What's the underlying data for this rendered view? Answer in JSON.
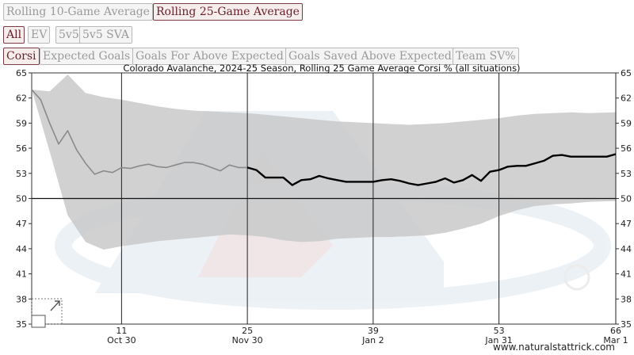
{
  "toggles": {
    "rolling_10": "Rolling 10-Game Average",
    "rolling_25": "Rolling 25-Game Average"
  },
  "situations": [
    "All",
    "EV",
    "5v5",
    "5v5 SVA"
  ],
  "metrics": [
    "Corsi",
    "Expected Goals",
    "Goals For Above Expected",
    "Goals Saved Above Expected",
    "Team SV%"
  ],
  "credit": "www.naturalstattrick.com",
  "colors": {
    "line": "#000000",
    "band": "#c9c9c9",
    "button_active": "#6b1f2a"
  },
  "chart_data": {
    "type": "line",
    "title": "Colorado Avalanche, 2024-25 Season, Rolling 25 Game Average Corsi % (all situations)",
    "xlim": [
      1,
      66
    ],
    "ylim": [
      35,
      65
    ],
    "x_ticks": [
      11,
      25,
      39,
      53,
      66
    ],
    "x_date_labels": [
      "Oct 30",
      "Nov 30",
      "Jan 2",
      "Jan 31",
      "Mar 1"
    ],
    "y_ticks": [
      35,
      38,
      41,
      44,
      47,
      50,
      53,
      56,
      59,
      62,
      65
    ],
    "reference_line": 50,
    "grid": "vertical at x ticks",
    "series": [
      {
        "style": "partial (grey)",
        "x": [
          1,
          2,
          3,
          4,
          5,
          6,
          7,
          8,
          9,
          10,
          11,
          12,
          13,
          14,
          15,
          16,
          17,
          18,
          19,
          20,
          21,
          22,
          23,
          24,
          25
        ],
        "values": [
          63.0,
          61.8,
          59.0,
          56.5,
          58.1,
          55.8,
          54.2,
          52.9,
          53.3,
          53.1,
          53.7,
          53.6,
          53.9,
          54.1,
          53.8,
          53.7,
          54.0,
          54.3,
          54.3,
          54.1,
          53.7,
          53.3,
          54.0,
          53.7,
          53.7
        ]
      },
      {
        "style": "full 25-game window (black)",
        "x": [
          25,
          26,
          27,
          28,
          29,
          30,
          31,
          32,
          33,
          34,
          35,
          36,
          37,
          38,
          39,
          40,
          41,
          42,
          43,
          44,
          45,
          46,
          47,
          48,
          49,
          50,
          51,
          52,
          53,
          54,
          55,
          56,
          57,
          58,
          59,
          60,
          61,
          62,
          63,
          64,
          65,
          66
        ],
        "values": [
          53.7,
          53.4,
          52.5,
          52.5,
          52.5,
          51.6,
          52.2,
          52.3,
          52.7,
          52.4,
          52.2,
          52.0,
          52.0,
          52.0,
          52.0,
          52.2,
          52.3,
          52.1,
          51.8,
          51.6,
          51.8,
          52.0,
          52.4,
          51.9,
          52.2,
          52.8,
          52.1,
          53.2,
          53.4,
          53.8,
          53.9,
          53.9,
          54.2,
          54.5,
          55.1,
          55.2,
          55.0,
          55.0,
          55.0,
          55.0,
          55.0,
          55.3
        ]
      }
    ],
    "league_range": {
      "x": [
        1,
        3,
        5,
        7,
        9,
        11,
        13,
        15,
        17,
        19,
        21,
        23,
        25,
        27,
        29,
        31,
        33,
        35,
        37,
        39,
        41,
        43,
        45,
        47,
        49,
        51,
        53,
        55,
        57,
        59,
        61,
        63,
        66
      ],
      "upper": [
        63,
        62.8,
        64.8,
        62.6,
        62.1,
        61.8,
        61.4,
        61.0,
        60.7,
        60.5,
        60.4,
        60.3,
        60.2,
        60.0,
        59.8,
        59.6,
        59.4,
        59.2,
        59.1,
        59.0,
        58.9,
        58.8,
        58.9,
        59.0,
        59.2,
        59.4,
        59.6,
        59.9,
        60.1,
        60.2,
        60.3,
        60.2,
        60.3
      ],
      "lower": [
        63,
        55.6,
        48.0,
        44.8,
        43.9,
        44.3,
        44.6,
        44.9,
        45.1,
        45.3,
        45.5,
        45.7,
        45.6,
        45.4,
        45.0,
        44.8,
        44.9,
        45.2,
        45.3,
        45.4,
        45.4,
        45.5,
        45.6,
        45.9,
        46.4,
        47.0,
        47.9,
        48.6,
        49.1,
        49.3,
        49.4,
        49.6,
        49.7
      ]
    }
  }
}
